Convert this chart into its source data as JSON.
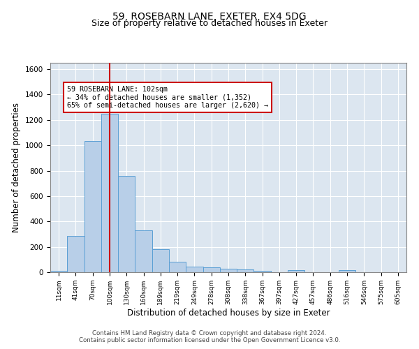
{
  "title1": "59, ROSEBARN LANE, EXETER, EX4 5DG",
  "title2": "Size of property relative to detached houses in Exeter",
  "xlabel": "Distribution of detached houses by size in Exeter",
  "ylabel": "Number of detached properties",
  "bar_labels": [
    "11sqm",
    "41sqm",
    "70sqm",
    "100sqm",
    "130sqm",
    "160sqm",
    "189sqm",
    "219sqm",
    "249sqm",
    "278sqm",
    "308sqm",
    "338sqm",
    "367sqm",
    "397sqm",
    "427sqm",
    "457sqm",
    "486sqm",
    "516sqm",
    "546sqm",
    "575sqm",
    "605sqm"
  ],
  "bar_values": [
    10,
    285,
    1035,
    1250,
    760,
    330,
    180,
    80,
    42,
    38,
    28,
    22,
    10,
    0,
    18,
    0,
    0,
    18,
    0,
    0,
    0
  ],
  "bar_color": "#b8cfe8",
  "bar_edge_color": "#5a9fd4",
  "background_color": "#dce6f0",
  "red_line_x": 3,
  "annotation_text": "59 ROSEBARN LANE: 102sqm\n← 34% of detached houses are smaller (1,352)\n65% of semi-detached houses are larger (2,620) →",
  "annotation_box_color": "#ffffff",
  "annotation_box_edge": "#cc0000",
  "red_line_color": "#cc0000",
  "ylim": [
    0,
    1650
  ],
  "yticks": [
    0,
    200,
    400,
    600,
    800,
    1000,
    1200,
    1400,
    1600
  ],
  "footer_text": "Contains HM Land Registry data © Crown copyright and database right 2024.\nContains public sector information licensed under the Open Government Licence v3.0.",
  "title1_fontsize": 10,
  "title2_fontsize": 9,
  "xlabel_fontsize": 8.5,
  "ylabel_fontsize": 8.5
}
